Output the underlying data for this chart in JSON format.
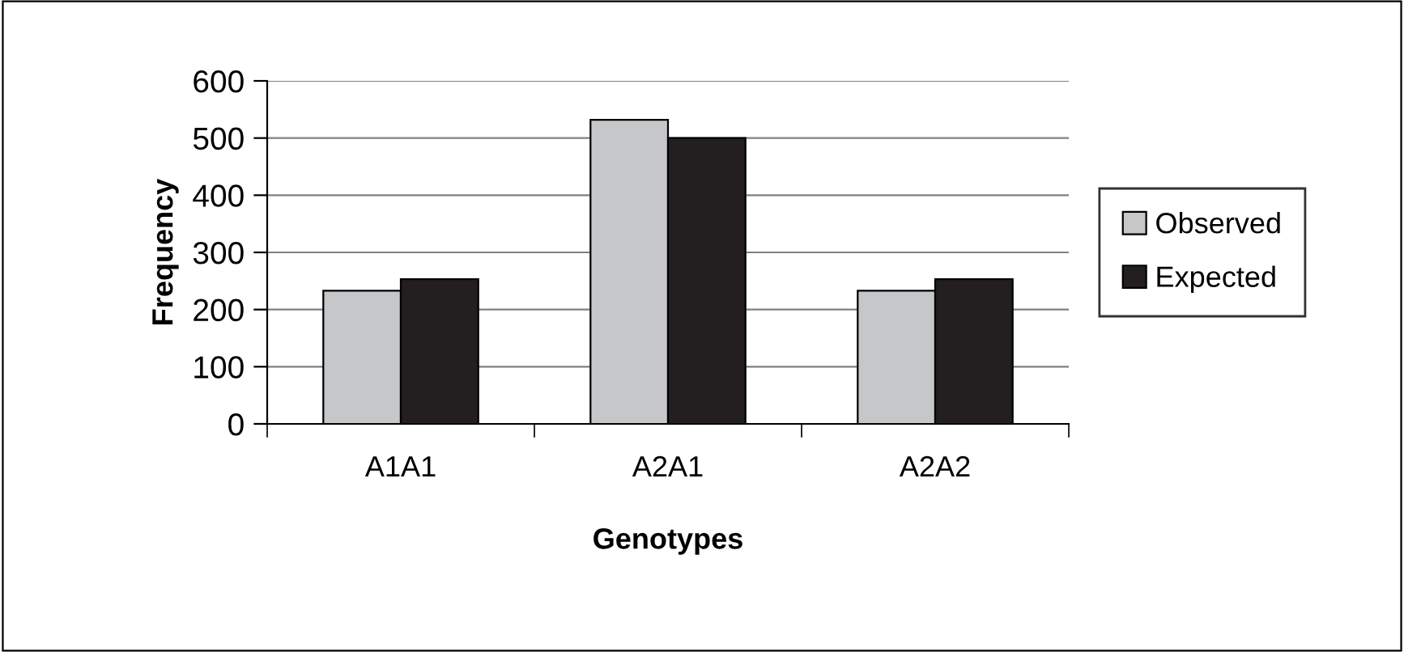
{
  "chart_data": {
    "type": "bar",
    "xlabel": "Genotypes",
    "ylabel": "Frequency",
    "categories": [
      "A1A1",
      "A2A1",
      "A2A2"
    ],
    "series": [
      {
        "name": "Observed",
        "color": "#c6c7c9",
        "values": [
          233,
          532,
          233
        ]
      },
      {
        "name": "Expected",
        "color": "#231f20",
        "values": [
          253,
          500,
          253
        ]
      }
    ],
    "ylim": [
      0,
      600
    ],
    "yticks": [
      0,
      100,
      200,
      300,
      400,
      500,
      600
    ],
    "grid": "y",
    "legend": "right"
  }
}
